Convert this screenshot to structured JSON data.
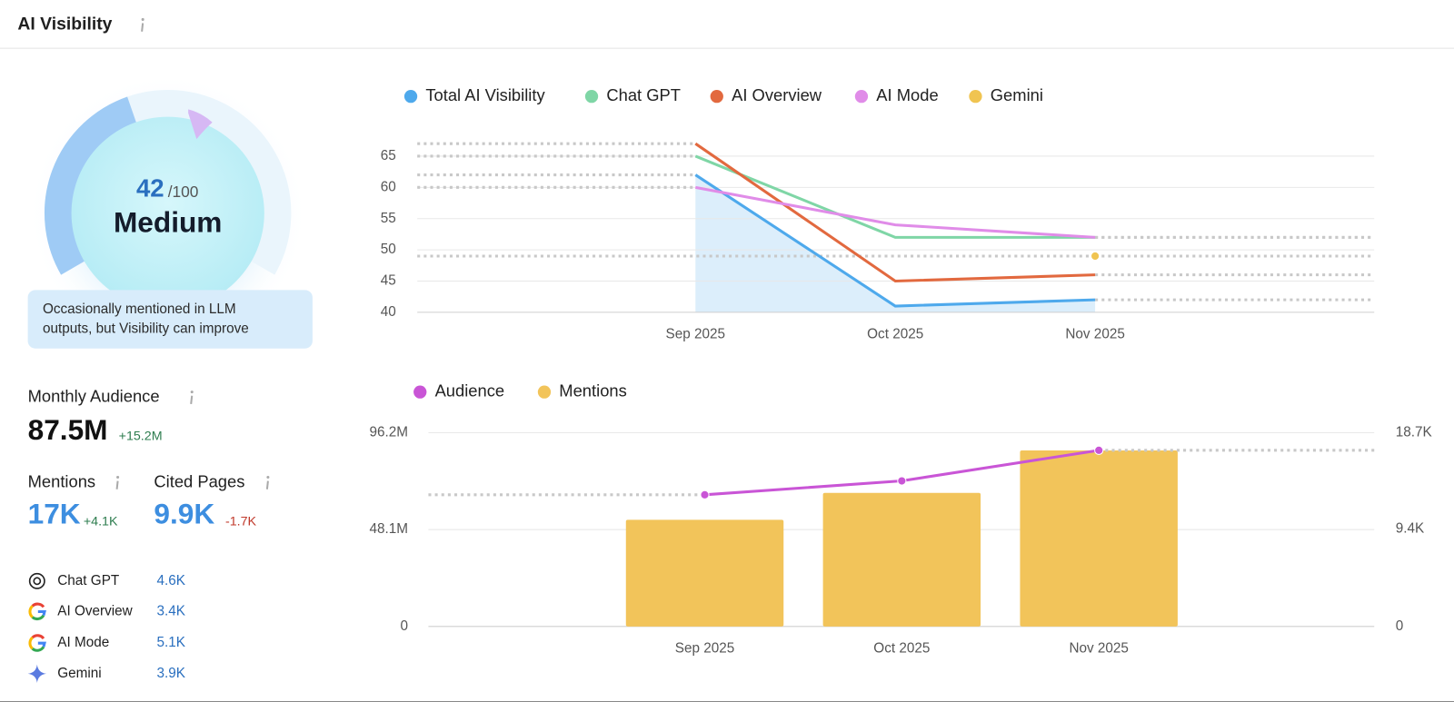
{
  "header": {
    "title": "AI Visibility"
  },
  "score": {
    "value": 42,
    "max": {
      "value": 100,
      "label": "/100"
    },
    "level": "Medium",
    "description": "Occasionally mentioned in LLM outputs, but Visibility can improve"
  },
  "metrics": {
    "monthly_audience": {
      "label": "Monthly Audience",
      "value": "87.5M",
      "change": "+15.2M"
    },
    "mentions": {
      "label": "Mentions",
      "value": "17K",
      "change": "+4.1K"
    },
    "cited_pages": {
      "label": "Cited Pages",
      "value": "9.9K",
      "change": "-1.7K"
    }
  },
  "platforms": [
    {
      "name": "Chat GPT",
      "value": "4.6K"
    },
    {
      "name": "AI Overview",
      "value": "3.4K"
    },
    {
      "name": "AI Mode",
      "value": "5.1K"
    },
    {
      "name": "Gemini",
      "value": "3.9K"
    }
  ],
  "chart_data": [
    {
      "type": "line",
      "categories": [
        "Sep 2025",
        "Oct 2025",
        "Nov 2025"
      ],
      "series": [
        {
          "name": "Total AI Visibility",
          "color": "#4ea9ec",
          "values": [
            62,
            41,
            42
          ]
        },
        {
          "name": "Chat GPT",
          "color": "#7fd6a6",
          "values": [
            65,
            52,
            52
          ]
        },
        {
          "name": "AI Overview",
          "color": "#e2693f",
          "values": [
            67,
            45,
            46
          ]
        },
        {
          "name": "AI Mode",
          "color": "#e08ce8",
          "values": [
            60,
            54,
            52
          ]
        },
        {
          "name": "Gemini",
          "color": "#f0c451",
          "values": [
            null,
            null,
            49
          ]
        }
      ],
      "ylim": [
        40,
        67
      ],
      "yticks": [
        40,
        45,
        50,
        55,
        60,
        65
      ],
      "grid": true,
      "legend": "top"
    },
    {
      "type": "bar_line",
      "categories": [
        "Sep 2025",
        "Oct 2025",
        "Nov 2025"
      ],
      "series": [
        {
          "name": "Audience",
          "color": "#c955d6",
          "type": "line",
          "values": [
            65400000,
            72300000,
            87500000
          ]
        },
        {
          "name": "Mentions",
          "color": "#f2c45a",
          "type": "bar",
          "axis": "y2",
          "values": [
            10300,
            12900,
            17000
          ]
        }
      ],
      "ylim": [
        0,
        96200000
      ],
      "yticks": [
        0,
        {
          "value": 48100000,
          "label": "48.1M"
        },
        {
          "value": 96200000,
          "label": "96.2M"
        }
      ],
      "y2lim": [
        0,
        18700
      ],
      "y2ticks": [
        0,
        {
          "value": 9400,
          "label": "9.4K"
        },
        {
          "value": 18700,
          "label": "18.7K"
        }
      ],
      "grid": true,
      "legend": "top"
    }
  ]
}
